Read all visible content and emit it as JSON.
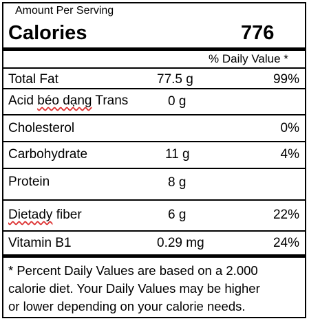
{
  "header": {
    "amount_per_serving": "Amount Per Serving",
    "calories_label": "Calories",
    "calories_value": "776"
  },
  "daily_value_heading": "% Daily Value *",
  "nutrients": [
    {
      "name_part1": "Total Fat",
      "name_part2": "",
      "name_part3": "",
      "amount": "77.5 g",
      "dv": "99%"
    },
    {
      "name_part1": "Acid ",
      "name_part2": "béo dạng",
      "name_part3": " Trans",
      "amount": "0 g",
      "dv": ""
    },
    {
      "name_part1": "Cholesterol",
      "name_part2": "",
      "name_part3": "",
      "amount": "",
      "dv": "0%"
    },
    {
      "name_part1": "Carbohydrate",
      "name_part2": "",
      "name_part3": "",
      "amount": "11 g",
      "dv": "4%"
    },
    {
      "name_part1": "Protein",
      "name_part2": "",
      "name_part3": "",
      "amount": "8 g",
      "dv": ""
    },
    {
      "name_part1": "",
      "name_part2": "Dietady",
      "name_part3": " fiber",
      "amount": "6 g",
      "dv": "22%"
    },
    {
      "name_part1": "Vitamin B1",
      "name_part2": "",
      "name_part3": "",
      "amount": "0.29 mg",
      "dv": "24%"
    }
  ],
  "footnote": {
    "line1": "* Percent Daily Values are based on a 2.000",
    "line2": "calorie diet. Your Daily Values may be higher",
    "line3": "or lower depending on your calorie needs."
  },
  "colors": {
    "border": "#000000",
    "spellcheck_underline": "#dd3333"
  }
}
